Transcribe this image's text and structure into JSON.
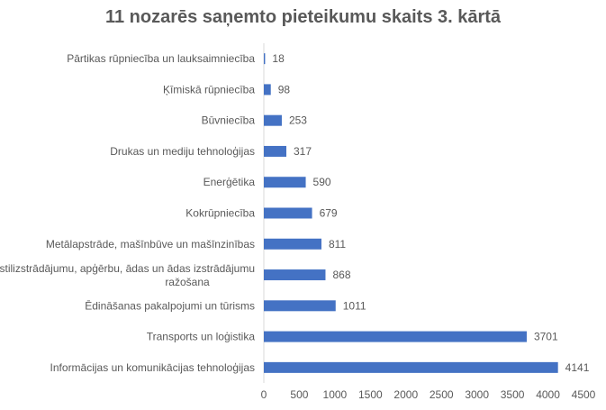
{
  "chart_data": {
    "type": "bar",
    "orientation": "horizontal",
    "title": "11 nozarēs saņemto pieteikumu skaits 3. kārtā",
    "categories": [
      "Pārtikas rūpniecība un lauksaimniecība",
      "Ķīmiskā rūpniecība",
      "Būvniecība",
      "Drukas un mediju tehnoloģijas",
      "Enerģētika",
      "Kokrūpniecība",
      "Metālapstrāde, mašīnbūve un mašīnzinības",
      "Tekstilizstrādājumu, apģērbu, ādas un ādas izstrādājumu ražošana",
      "Ēdināšanas pakalpojumi un tūrisms",
      "Transports un loģistika",
      "Informācijas un komunikācijas tehnoloģijas"
    ],
    "values": [
      18,
      98,
      253,
      317,
      590,
      679,
      811,
      868,
      1011,
      3701,
      4141
    ],
    "xlim": [
      0,
      4500
    ],
    "xticks": [
      0,
      500,
      1000,
      1500,
      2000,
      2500,
      3000,
      3500,
      4000,
      4500
    ],
    "xlabel": "",
    "ylabel": "",
    "grid": false,
    "data_labels": true,
    "bar_color": "#4472C4"
  }
}
